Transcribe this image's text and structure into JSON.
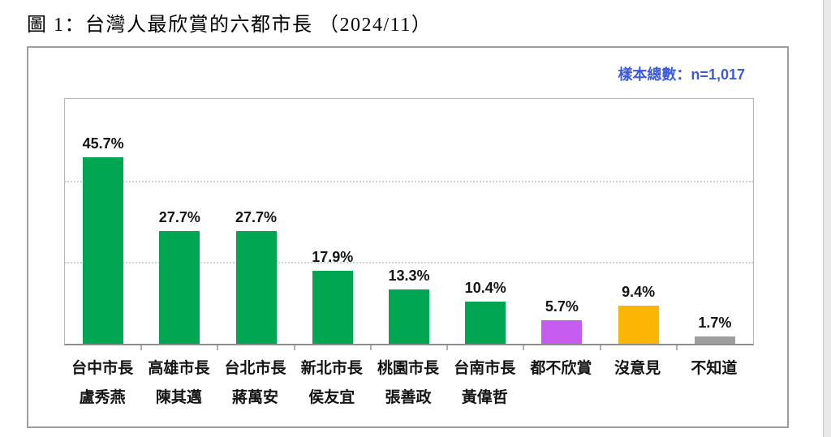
{
  "page": {
    "title": "圖 1：台灣人最欣賞的六都市長 （2024/11）",
    "sample_note": "樣本總數：n=1,017"
  },
  "chart_data": {
    "type": "bar",
    "title": "圖 1：台灣人最欣賞的六都市長 （2024/11）",
    "sample_note": "樣本總數：n=1,017",
    "xlabel": "",
    "ylabel": "",
    "ylim": [
      0,
      60
    ],
    "gridlines_pct": [
      20,
      40
    ],
    "grid": "horizontal-dotted",
    "legend": "none",
    "categories": [
      "台中市長 盧秀燕",
      "高雄市長 陳其邁",
      "台北市長 蔣萬安",
      "新北市長 侯友宜",
      "桃園市長 張善政",
      "台南市長 黃偉哲",
      "都不欣賞",
      "沒意見",
      "不知道"
    ],
    "values": [
      45.7,
      27.7,
      27.7,
      17.9,
      13.3,
      10.4,
      5.7,
      9.4,
      1.7
    ],
    "bars": [
      {
        "line1": "台中市長",
        "line2": "盧秀燕",
        "value": 45.7,
        "label": "45.7%",
        "color": "#00A651"
      },
      {
        "line1": "高雄市長",
        "line2": "陳其邁",
        "value": 27.7,
        "label": "27.7%",
        "color": "#00A651"
      },
      {
        "line1": "台北市長",
        "line2": "蔣萬安",
        "value": 27.7,
        "label": "27.7%",
        "color": "#00A651"
      },
      {
        "line1": "新北市長",
        "line2": "侯友宜",
        "value": 17.9,
        "label": "17.9%",
        "color": "#00A651"
      },
      {
        "line1": "桃園市長",
        "line2": "張善政",
        "value": 13.3,
        "label": "13.3%",
        "color": "#00A651"
      },
      {
        "line1": "台南市長",
        "line2": "黃偉哲",
        "value": 10.4,
        "label": "10.4%",
        "color": "#00A651"
      },
      {
        "line1": "都不欣賞",
        "line2": "",
        "value": 5.7,
        "label": "5.7%",
        "color": "#C55BEF"
      },
      {
        "line1": "沒意見",
        "line2": "",
        "value": 9.4,
        "label": "9.4%",
        "color": "#FBB504"
      },
      {
        "line1": "不知道",
        "line2": "",
        "value": 1.7,
        "label": "1.7%",
        "color": "#9E9E9E"
      }
    ]
  },
  "colors": {
    "note_blue": "#3D5BD9",
    "bar_green": "#00A651",
    "bar_purple": "#C55BEF",
    "bar_orange": "#FBB504",
    "bar_gray": "#9E9E9E",
    "axis_gray": "#8C8C8C",
    "gridline_gray": "#D2D2D2"
  }
}
